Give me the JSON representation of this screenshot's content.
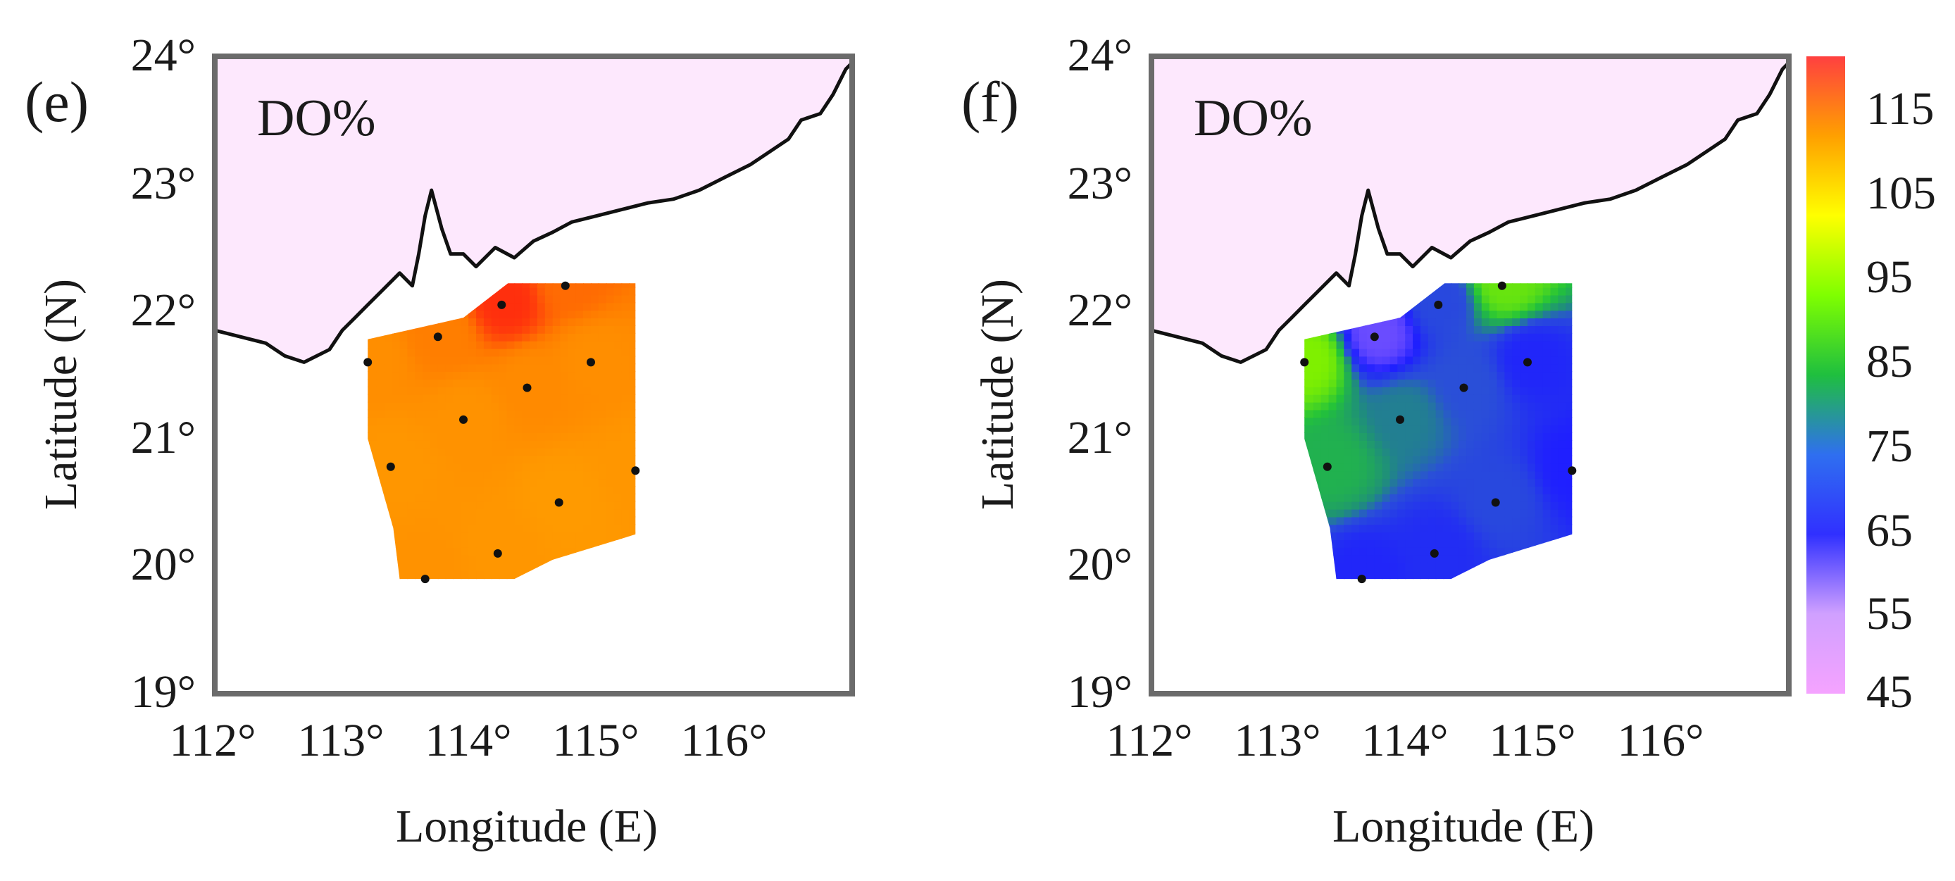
{
  "figure": {
    "panels": [
      {
        "id": "e",
        "panel_label": "(e)",
        "variable_label": "DO%",
        "xlabel": "Longitude (E)",
        "ylabel": "Latitude (N)",
        "x_ticks": [
          "112°",
          "113°",
          "114°",
          "115°",
          "116°"
        ],
        "y_ticks": [
          "19°",
          "20°",
          "21°",
          "22°",
          "23°",
          "24°"
        ]
      },
      {
        "id": "f",
        "panel_label": "(f)",
        "variable_label": "DO%",
        "xlabel": "Longitude (E)",
        "ylabel": "Latitude (N)",
        "x_ticks": [
          "112°",
          "113°",
          "114°",
          "115°",
          "116°"
        ],
        "y_ticks": [
          "19°",
          "20°",
          "21°",
          "22°",
          "23°",
          "24°"
        ]
      }
    ],
    "colorbar": {
      "tick_labels": [
        "115",
        "105",
        "95",
        "85",
        "75",
        "65",
        "55",
        "45"
      ],
      "range": [
        45,
        120
      ],
      "colors": [
        "#f5a3ff",
        "#d0a0ff",
        "#3030ff",
        "#2f6ff0",
        "#1fbf3f",
        "#7fff00",
        "#ffff00",
        "#ffa000",
        "#ff4040"
      ]
    }
  },
  "chart_data": [
    {
      "type": "heatmap",
      "panel": "e",
      "title": "DO%",
      "xlabel": "Longitude (E)",
      "ylabel": "Latitude (N)",
      "xlim": [
        112,
        117
      ],
      "ylim": [
        19,
        24
      ],
      "land_color": "#fde8fd",
      "field_color_range": [
        "#ff8c00",
        "#ff2a1a"
      ],
      "stations": [
        {
          "lon": 113.2,
          "lat": 21.6,
          "value": 103
        },
        {
          "lon": 113.75,
          "lat": 21.8,
          "value": 107
        },
        {
          "lon": 114.25,
          "lat": 22.05,
          "value": 118
        },
        {
          "lon": 114.75,
          "lat": 22.2,
          "value": 110
        },
        {
          "lon": 114.45,
          "lat": 21.4,
          "value": 104
        },
        {
          "lon": 114.95,
          "lat": 21.6,
          "value": 103
        },
        {
          "lon": 113.95,
          "lat": 21.15,
          "value": 102
        },
        {
          "lon": 113.38,
          "lat": 20.78,
          "value": 101
        },
        {
          "lon": 115.3,
          "lat": 20.75,
          "value": 101
        },
        {
          "lon": 114.7,
          "lat": 20.5,
          "value": 100
        },
        {
          "lon": 114.22,
          "lat": 20.1,
          "value": 101
        },
        {
          "lon": 113.65,
          "lat": 19.9,
          "value": 102
        }
      ]
    },
    {
      "type": "heatmap",
      "panel": "f",
      "title": "DO%",
      "xlabel": "Longitude (E)",
      "ylabel": "Latitude (N)",
      "xlim": [
        112,
        117
      ],
      "ylim": [
        19,
        24
      ],
      "land_color": "#fde8fd",
      "stations": [
        {
          "lon": 113.2,
          "lat": 21.6,
          "value": 82
        },
        {
          "lon": 113.75,
          "lat": 21.8,
          "value": 52
        },
        {
          "lon": 114.25,
          "lat": 22.05,
          "value": 63
        },
        {
          "lon": 114.75,
          "lat": 22.2,
          "value": 80
        },
        {
          "lon": 114.45,
          "lat": 21.4,
          "value": 64
        },
        {
          "lon": 114.95,
          "lat": 21.6,
          "value": 58
        },
        {
          "lon": 113.95,
          "lat": 21.15,
          "value": 67
        },
        {
          "lon": 113.38,
          "lat": 20.78,
          "value": 72
        },
        {
          "lon": 115.3,
          "lat": 20.75,
          "value": 57
        },
        {
          "lon": 114.7,
          "lat": 20.5,
          "value": 63
        },
        {
          "lon": 114.22,
          "lat": 20.1,
          "value": 59
        },
        {
          "lon": 113.65,
          "lat": 19.9,
          "value": 58
        }
      ]
    }
  ]
}
